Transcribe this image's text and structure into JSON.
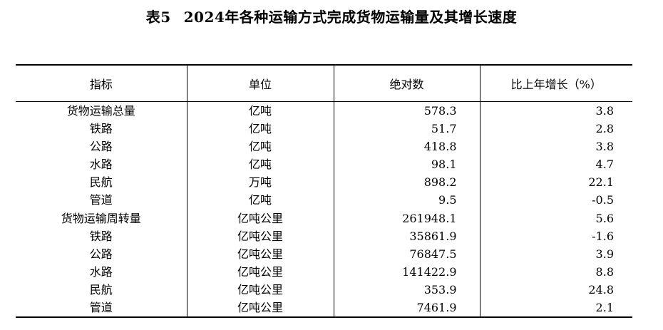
{
  "title": {
    "number": "表5",
    "text": "2024年各种运输方式完成货物运输量及其增长速度"
  },
  "headers": [
    "指标",
    "单位",
    "绝对数",
    "比上年增长（%）"
  ],
  "rows": [
    {
      "indicator": "货物运输总量",
      "unit": "亿吨",
      "absolute": "578.3",
      "growth": "3.8"
    },
    {
      "indicator": "铁路",
      "unit": "亿吨",
      "absolute": "51.7",
      "growth": "2.8"
    },
    {
      "indicator": "公路",
      "unit": "亿吨",
      "absolute": "418.8",
      "growth": "3.8"
    },
    {
      "indicator": "水路",
      "unit": "亿吨",
      "absolute": "98.1",
      "growth": "4.7"
    },
    {
      "indicator": "民航",
      "unit": "万吨",
      "absolute": "898.2",
      "growth": "22.1"
    },
    {
      "indicator": "管道",
      "unit": "亿吨",
      "absolute": "9.5",
      "growth": "-0.5"
    },
    {
      "indicator": "货物运输周转量",
      "unit": "亿吨公里",
      "absolute": "261948.1",
      "growth": "5.6"
    },
    {
      "indicator": "铁路",
      "unit": "亿吨公里",
      "absolute": "35861.9",
      "growth": "-1.6"
    },
    {
      "indicator": "公路",
      "unit": "亿吨公里",
      "absolute": "76847.5",
      "growth": "3.9"
    },
    {
      "indicator": "水路",
      "unit": "亿吨公里",
      "absolute": "141422.9",
      "growth": "8.8"
    },
    {
      "indicator": "民航",
      "unit": "亿吨公里",
      "absolute": "353.9",
      "growth": "24.8"
    },
    {
      "indicator": "管道",
      "unit": "亿吨公里",
      "absolute": "7461.9",
      "growth": "2.1"
    }
  ]
}
